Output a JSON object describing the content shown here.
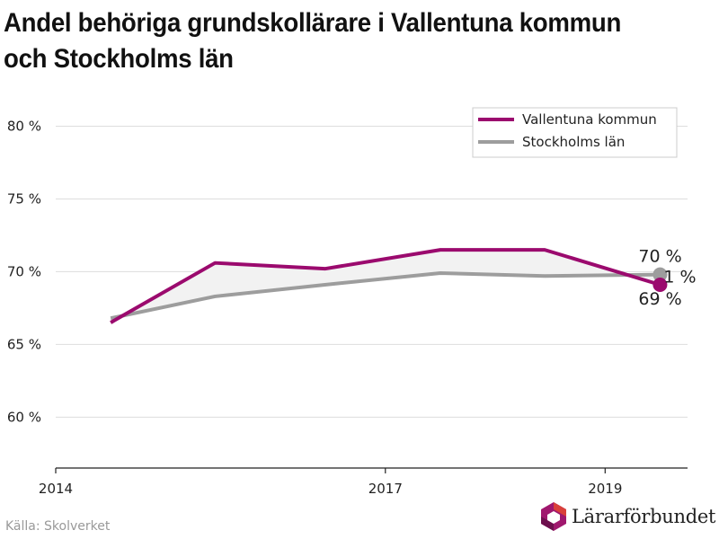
{
  "title": "Andel behöriga grundskollärare i Vallentuna kommun och Stockholms län",
  "source": "Källa: Skolverket",
  "logo_text": "Lärarförbundet",
  "colors": {
    "vallentuna": "#9b0a6e",
    "stockholm": "#9d9d9d",
    "grid": "#dddddd",
    "logo_magenta": "#a0176e",
    "logo_red": "#d9403a"
  },
  "chart_data": {
    "type": "line",
    "xlim": [
      2014,
      2019.75
    ],
    "ylim": [
      56.5,
      82.5
    ],
    "y_ticks": [
      {
        "value": 60,
        "label": "60 %"
      },
      {
        "value": 65,
        "label": "65 %"
      },
      {
        "value": 70,
        "label": "70 %"
      },
      {
        "value": 75,
        "label": "75 %"
      },
      {
        "value": 80,
        "label": "80 %"
      }
    ],
    "x_ticks": [
      {
        "value": 2014,
        "label": "2014"
      },
      {
        "value": 2017,
        "label": "2017"
      },
      {
        "value": 2019,
        "label": "2019"
      }
    ],
    "legend_position": "top-right",
    "series": [
      {
        "name": "Vallentuna kommun",
        "color": "#9b0a6e",
        "points": [
          [
            2014.5,
            66.5
          ],
          [
            2015.45,
            70.6
          ],
          [
            2016.45,
            70.2
          ],
          [
            2017.5,
            71.5
          ],
          [
            2018.45,
            71.5
          ],
          [
            2019.5,
            69.1
          ]
        ],
        "end_label": "69 %"
      },
      {
        "name": "Stockholms län",
        "color": "#9d9d9d",
        "points": [
          [
            2014.5,
            66.8
          ],
          [
            2015.45,
            68.3
          ],
          [
            2016.45,
            69.1
          ],
          [
            2017.5,
            69.9
          ],
          [
            2018.45,
            69.7
          ],
          [
            2019.5,
            69.8
          ]
        ],
        "end_label": "70 %"
      }
    ],
    "annotation_partial": "1 %"
  }
}
